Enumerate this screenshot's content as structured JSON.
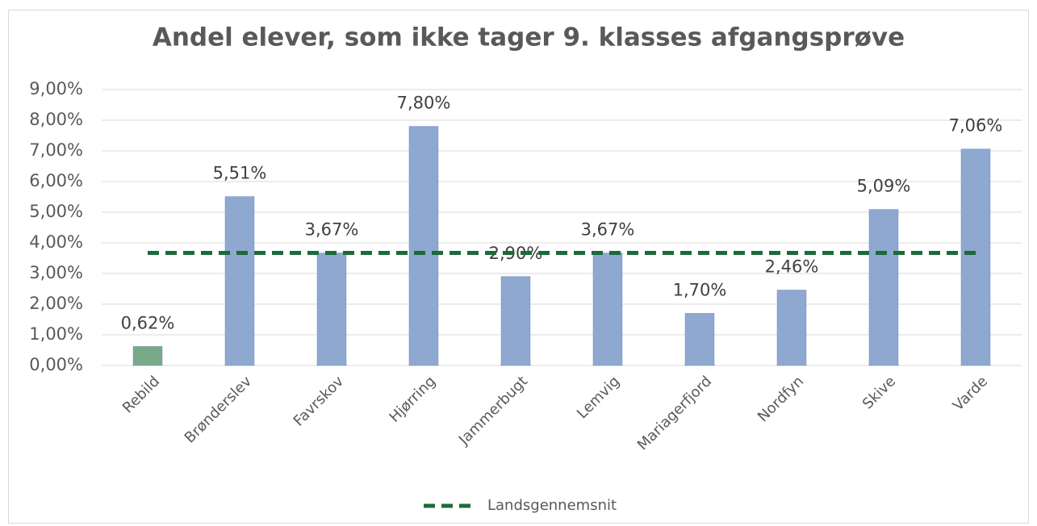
{
  "chart_data": {
    "type": "bar",
    "title": "Andel elever, som ikke tager 9. klasses afgangsprøve",
    "categories": [
      "Rebild",
      "Brønderslev",
      "Favrskov",
      "Hjørring",
      "Jammerbugt",
      "Lemvig",
      "Mariagerfjord",
      "Nordfyn",
      "Skive",
      "Varde"
    ],
    "series": [
      {
        "type": "bar",
        "values": [
          0.62,
          5.51,
          3.67,
          7.8,
          2.9,
          3.67,
          1.7,
          2.46,
          5.09,
          7.06
        ],
        "value_labels": [
          "0,62%",
          "5,51%",
          "3,67%",
          "7,80%",
          "2,90%",
          "3,67%",
          "1,70%",
          "2,46%",
          "5,09%",
          "7,06%"
        ],
        "colors": [
          "#7aa987",
          "#8ea8d0",
          "#8ea8d0",
          "#8ea8d0",
          "#8ea8d0",
          "#8ea8d0",
          "#8ea8d0",
          "#8ea8d0",
          "#8ea8d0",
          "#8ea8d0"
        ]
      },
      {
        "type": "line",
        "name": "Landsgennemsnit",
        "color": "#1b6b3a",
        "dashed": true,
        "values": [
          3.67,
          3.67,
          3.67,
          3.67,
          3.67,
          3.67,
          3.67,
          3.67,
          3.67,
          3.67
        ]
      }
    ],
    "ylim": [
      0,
      9
    ],
    "yticks": [
      {
        "value": 0,
        "label": "0,00%"
      },
      {
        "value": 1,
        "label": "1,00%"
      },
      {
        "value": 2,
        "label": "2,00%"
      },
      {
        "value": 3,
        "label": "3,00%"
      },
      {
        "value": 4,
        "label": "4,00%"
      },
      {
        "value": 5,
        "label": "5,00%"
      },
      {
        "value": 6,
        "label": "6,00%"
      },
      {
        "value": 7,
        "label": "7,00%"
      },
      {
        "value": 8,
        "label": "8,00%"
      },
      {
        "value": 9,
        "label": "9,00%"
      }
    ],
    "grid": true,
    "legend": "bottom"
  }
}
